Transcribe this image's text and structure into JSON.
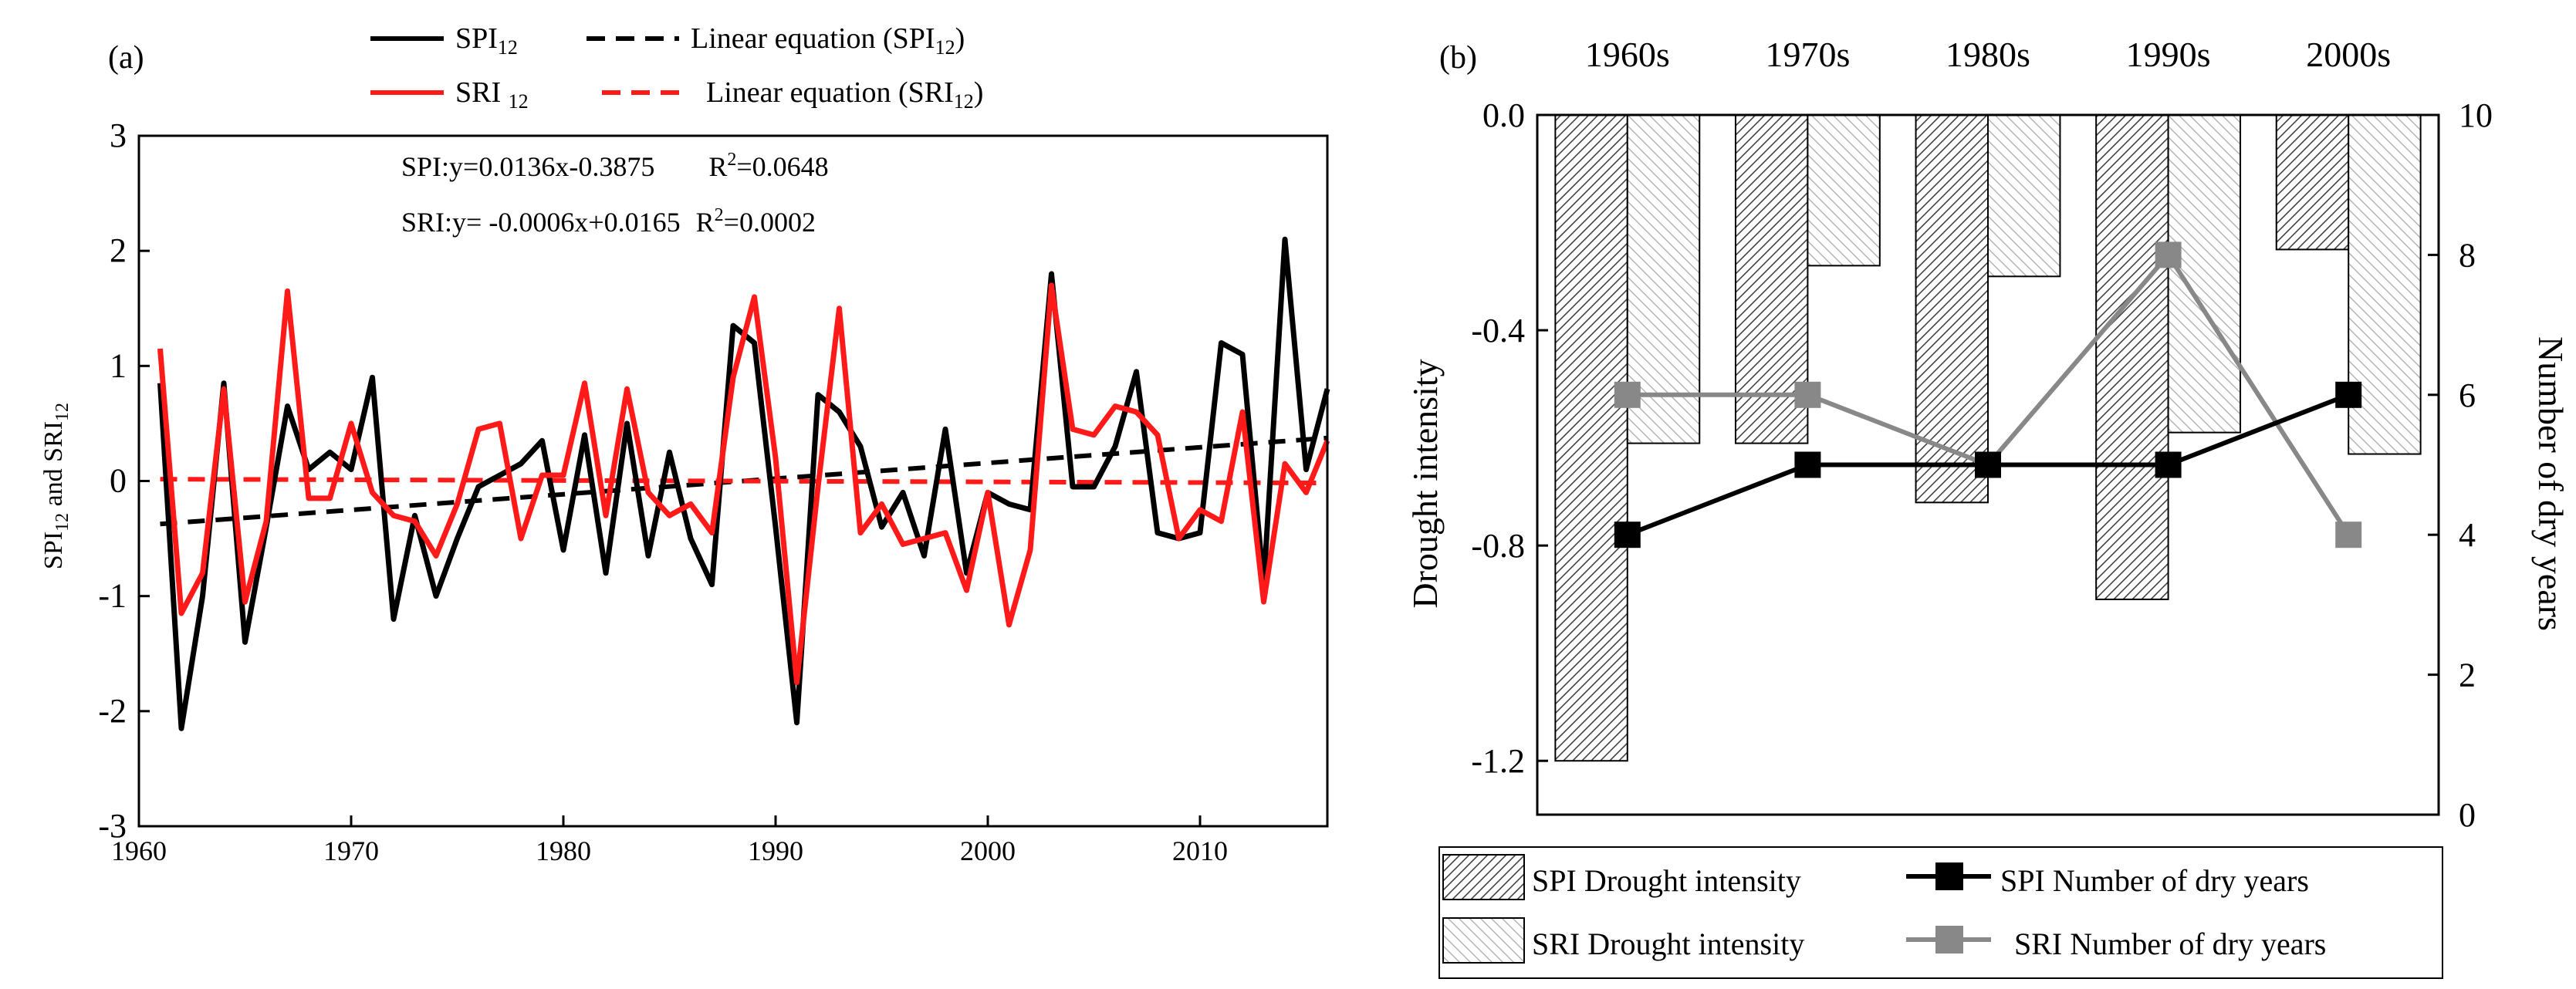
{
  "chart_data": [
    {
      "panel_label": "(a)",
      "type": "line",
      "ylabel": "SPI12 and SRI12",
      "ylabel_parts": {
        "a": "SPI",
        "a_sub": "12",
        "mid": " and SRI",
        "b_sub": "12"
      },
      "xlim": [
        1960,
        2016
      ],
      "ylim": [
        -3,
        3
      ],
      "xticks": [
        1960,
        1970,
        1980,
        1990,
        2000,
        2010
      ],
      "yticks": [
        -3,
        -2,
        -1,
        0,
        1,
        2,
        3
      ],
      "legend": [
        {
          "label": "SPI",
          "sub": "12",
          "style": "solid",
          "color": "#000000"
        },
        {
          "label": "Linear equation (SPI",
          "sub": "12",
          "suffix": ")",
          "style": "dashed",
          "color": "#000000"
        },
        {
          "label": "SRI ",
          "sub": "12",
          "style": "solid",
          "color": "#ff1a1a"
        },
        {
          "label": "Linear equation (SRI",
          "sub": "12",
          "suffix": ")",
          "style": "dashed",
          "color": "#ff1a1a"
        }
      ],
      "annotations": [
        {
          "text": "SPI:y=0.0136x-0.3875",
          "r2": "=0.0648"
        },
        {
          "text": "SRI:y= -0.0006x+0.0165",
          "r2": "=0.0002"
        }
      ],
      "x": [
        1961,
        1962,
        1963,
        1964,
        1965,
        1966,
        1967,
        1968,
        1969,
        1970,
        1971,
        1972,
        1973,
        1974,
        1975,
        1976,
        1977,
        1978,
        1979,
        1980,
        1981,
        1982,
        1983,
        1984,
        1985,
        1986,
        1987,
        1988,
        1989,
        1990,
        1991,
        1992,
        1993,
        1994,
        1995,
        1996,
        1997,
        1998,
        1999,
        2000,
        2001,
        2002,
        2003,
        2004,
        2005,
        2006,
        2007,
        2008,
        2009,
        2010,
        2011,
        2012,
        2013,
        2014,
        2015,
        2016
      ],
      "series": [
        {
          "name": "SPI12",
          "color": "#000000",
          "values": [
            0.85,
            -2.15,
            -1.0,
            0.85,
            -1.4,
            -0.4,
            0.65,
            0.1,
            0.25,
            0.1,
            0.9,
            -1.2,
            -0.3,
            -1.0,
            -0.5,
            -0.05,
            0.05,
            0.15,
            0.35,
            -0.6,
            0.4,
            -0.8,
            0.5,
            -0.65,
            0.25,
            -0.5,
            -0.9,
            1.35,
            1.2,
            -0.4,
            -2.1,
            0.75,
            0.6,
            0.3,
            -0.4,
            -0.1,
            -0.65,
            0.45,
            -0.8,
            -0.1,
            -0.2,
            -0.25,
            1.8,
            -0.05,
            -0.05,
            0.3,
            0.95,
            -0.45,
            -0.5,
            -0.45,
            1.2,
            1.1,
            -0.9,
            2.1,
            0.1,
            0.8
          ]
        },
        {
          "name": "SRI12",
          "color": "#ff1a1a",
          "values": [
            1.15,
            -1.15,
            -0.8,
            0.8,
            -1.05,
            -0.35,
            1.65,
            -0.15,
            -0.15,
            0.5,
            -0.1,
            -0.3,
            -0.35,
            -0.65,
            -0.2,
            0.45,
            0.5,
            -0.5,
            0.05,
            0.05,
            0.85,
            -0.3,
            0.8,
            -0.1,
            -0.3,
            -0.2,
            -0.45,
            0.9,
            1.6,
            0.2,
            -1.75,
            -0.05,
            1.5,
            -0.45,
            -0.2,
            -0.55,
            -0.5,
            -0.45,
            -0.95,
            -0.1,
            -1.25,
            -0.6,
            1.7,
            0.45,
            0.4,
            0.65,
            0.6,
            0.4,
            -0.5,
            -0.25,
            -0.35,
            0.6,
            -1.05,
            0.15,
            -0.1,
            0.35
          ]
        },
        {
          "name": "Linear equation (SPI12)",
          "color": "#000000",
          "style": "dashed",
          "linear": {
            "slope": 0.0136,
            "intercept": -0.3875
          }
        },
        {
          "name": "Linear equation (SRI12)",
          "color": "#ff1a1a",
          "style": "dashed",
          "linear": {
            "slope": -0.0006,
            "intercept": 0.0165
          }
        }
      ]
    },
    {
      "panel_label": "(b)",
      "type": "bar",
      "categories": [
        "1960s",
        "1970s",
        "1980s",
        "1990s",
        "2000s"
      ],
      "ylabel_left": "Drought intensity",
      "ylabel_right": "Number of dry years",
      "ylim_left": [
        -1.3,
        0.0
      ],
      "yticks_left": [
        "0.0",
        "-0.4",
        "-0.8",
        "-1.2"
      ],
      "ylim_right": [
        0,
        10
      ],
      "yticks_right": [
        0,
        2,
        4,
        6,
        8,
        10
      ],
      "series": [
        {
          "name": "SPI Drought intensity",
          "kind": "bar",
          "axis": "left",
          "values": [
            -1.2,
            -0.61,
            -0.72,
            -0.9,
            -0.25
          ]
        },
        {
          "name": "SRI Drought intensity",
          "kind": "bar",
          "axis": "left",
          "values": [
            -0.61,
            -0.28,
            -0.3,
            -0.59,
            -0.63
          ]
        },
        {
          "name": "SPI Number of dry years",
          "kind": "line",
          "axis": "right",
          "color": "#000000",
          "values": [
            4,
            5,
            5,
            5,
            6
          ]
        },
        {
          "name": "SRI Number of dry years",
          "kind": "line",
          "axis": "right",
          "color": "#888888",
          "values": [
            6,
            6,
            5,
            8,
            4
          ]
        }
      ]
    }
  ]
}
